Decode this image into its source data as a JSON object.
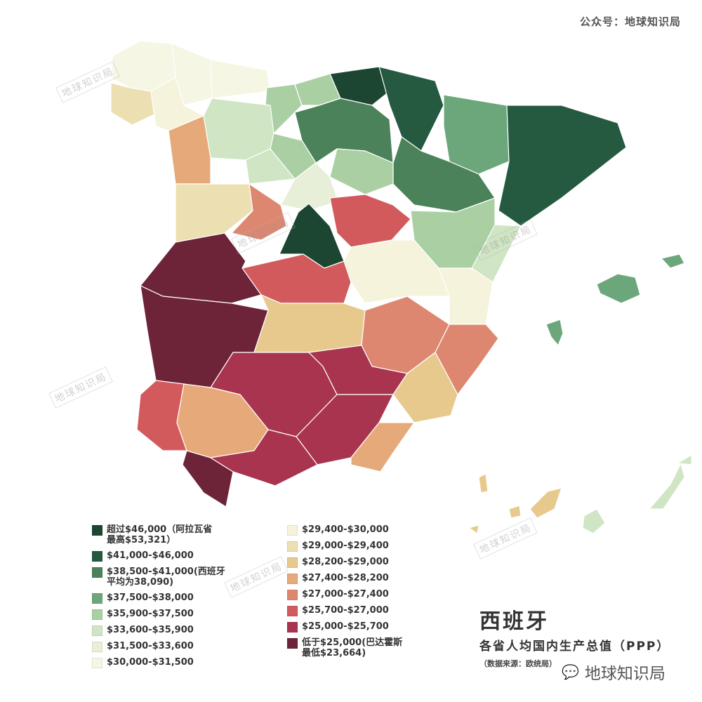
{
  "header": {
    "account": "公众号：地球知识局"
  },
  "title": {
    "main": "西班牙",
    "subtitle": "各省人均国内生产总值（PPP）",
    "source": "（数据来源：欧统局）"
  },
  "brand": {
    "icon": "wechat-icon",
    "name": "地球知识局"
  },
  "watermark": "地球知识局",
  "legend": {
    "left": [
      {
        "label": "超过$46,000（阿拉瓦省\n最高$53,321）",
        "color": "#1c4532"
      },
      {
        "label": "$41,000-$46,000",
        "color": "#255a41"
      },
      {
        "label": "$38,500-$41,000(西班牙\n平均为38,090)",
        "color": "#4b8259"
      },
      {
        "label": "$37,500-$38,000",
        "color": "#6ca77b"
      },
      {
        "label": "$35,900-$37,500",
        "color": "#a9cfa3"
      },
      {
        "label": "$33,600-$35,900",
        "color": "#cfe5c3"
      },
      {
        "label": "$31,500-$33,600",
        "color": "#e7efd8"
      },
      {
        "label": "$30,000-$31,500",
        "color": "#f5f6e4"
      }
    ],
    "right": [
      {
        "label": "$29,400-$30,000",
        "color": "#f6f3dc"
      },
      {
        "label": "$29,000-$29,400",
        "color": "#ece0b2"
      },
      {
        "label": "$28,200-$29,000",
        "color": "#e8c98d"
      },
      {
        "label": "$27,400-$28,200",
        "color": "#e6a979"
      },
      {
        "label": "$27,000-$27,400",
        "color": "#dd8771"
      },
      {
        "label": "$25,700-$27,000",
        "color": "#d35a5c"
      },
      {
        "label": "$25,000-$25,700",
        "color": "#a8344f"
      },
      {
        "label": "低于$25,000(巴达霍斯\n最低$23,664)",
        "color": "#6d2338"
      }
    ]
  }
}
